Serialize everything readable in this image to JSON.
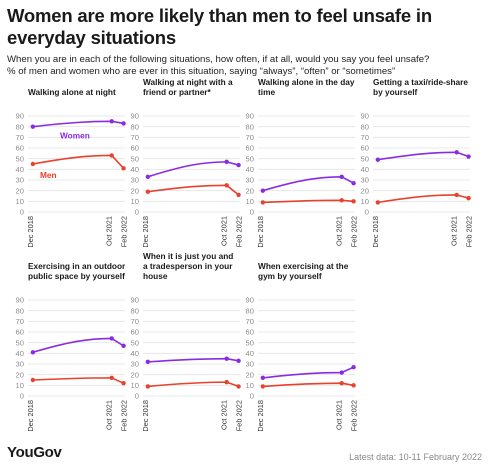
{
  "title": "Women are more likely than men to feel unsafe in everyday situations",
  "subtitle_lines": [
    "When you are in each of the following situations, how often, if at all, would you say you feel unsafe?",
    "% of men and women who are ever in this situation, saying “always”, “often” or “sometimes”"
  ],
  "logo": "YouGov",
  "footnote": "Latest data: 10-11 February 2022",
  "colors": {
    "women": "#8a2be2",
    "men": "#e8412c"
  },
  "chart_data": {
    "type": "line",
    "x": [
      "Dec 2018",
      "Oct 2021",
      "Feb 2022"
    ],
    "y_ticks": [
      0,
      10,
      20,
      30,
      40,
      50,
      60,
      70,
      80,
      90
    ],
    "ylim": [
      0,
      90
    ],
    "panels": [
      {
        "title_lines": [
          "Walking alone at night"
        ],
        "labels": {
          "women": "Women",
          "men": "Men"
        },
        "series": [
          {
            "name": "Women",
            "values": [
              80,
              85,
              83
            ]
          },
          {
            "name": "Men",
            "values": [
              45,
              53,
              41
            ]
          }
        ]
      },
      {
        "title_lines": [
          "Walking at night with a",
          "friend or partner*"
        ],
        "series": [
          {
            "name": "Women",
            "values": [
              33,
              47,
              44
            ]
          },
          {
            "name": "Men",
            "values": [
              19,
              25,
              16
            ]
          }
        ]
      },
      {
        "title_lines": [
          "Walking alone in the day",
          "time"
        ],
        "series": [
          {
            "name": "Women",
            "values": [
              20,
              33,
              27
            ]
          },
          {
            "name": "Men",
            "values": [
              9,
              11,
              10
            ]
          }
        ]
      },
      {
        "title_lines": [
          "Getting a taxi/ride-share",
          "by yourself"
        ],
        "series": [
          {
            "name": "Women",
            "values": [
              49,
              56,
              52
            ]
          },
          {
            "name": "Men",
            "values": [
              9,
              16,
              13
            ]
          }
        ]
      },
      {
        "title_lines": [
          "Exercising in an outdoor",
          "public space by yourself"
        ],
        "series": [
          {
            "name": "Women",
            "values": [
              41,
              54,
              47
            ]
          },
          {
            "name": "Men",
            "values": [
              15,
              17,
              12
            ]
          }
        ]
      },
      {
        "title_lines": [
          "When it is just you and",
          "a tradesperson in your",
          "house"
        ],
        "series": [
          {
            "name": "Women",
            "values": [
              32,
              35,
              33
            ]
          },
          {
            "name": "Men",
            "values": [
              9,
              13,
              9
            ]
          }
        ]
      },
      {
        "title_lines": [
          "When exercising at the",
          "gym by yourself"
        ],
        "series": [
          {
            "name": "Women",
            "values": [
              17,
              22,
              27
            ]
          },
          {
            "name": "Men",
            "values": [
              9,
              12,
              10
            ]
          }
        ]
      }
    ]
  }
}
